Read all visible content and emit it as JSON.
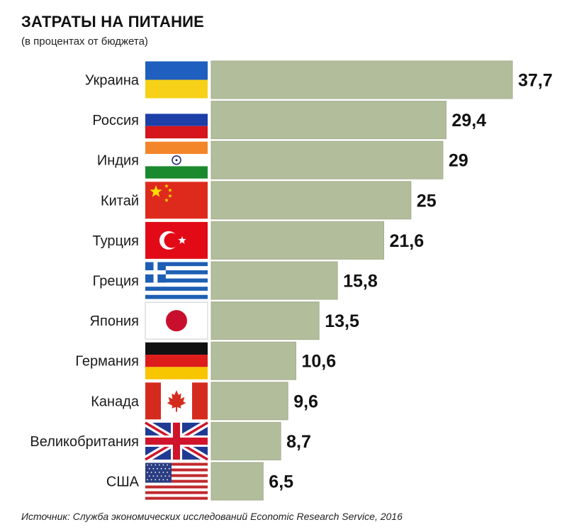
{
  "title": "ЗАТРАТЫ НА ПИТАНИЕ",
  "subtitle": "(в процентах от бюджета)",
  "source": "Источник: Служба экономических исследований Economic Research Service, 2016",
  "colors": {
    "bar": "#b2bd9c",
    "bar_edge": "#a3ae8c"
  },
  "chart_data": {
    "type": "bar",
    "orientation": "horizontal",
    "title": "ЗАТРАТЫ НА ПИТАНИЕ",
    "subtitle": "(в процентах от бюджета)",
    "xlabel": "",
    "ylabel": "",
    "xlim": [
      0,
      37.7
    ],
    "grid": false,
    "categories": [
      "Украина",
      "Россия",
      "Индия",
      "Китай",
      "Турция",
      "Греция",
      "Япония",
      "Германия",
      "Канада",
      "Великобритания",
      "США"
    ],
    "flags": [
      "flag-ukraine-icon",
      "flag-russia-icon",
      "flag-india-icon",
      "flag-china-icon",
      "flag-turkey-icon",
      "flag-greece-icon",
      "flag-japan-icon",
      "flag-germany-icon",
      "flag-canada-icon",
      "flag-uk-icon",
      "flag-usa-icon"
    ],
    "values": [
      37.7,
      29.4,
      29,
      25,
      21.6,
      15.8,
      13.5,
      10.6,
      9.6,
      8.7,
      6.5
    ],
    "value_labels": [
      "37,7",
      "29,4",
      "29",
      "25",
      "21,6",
      "15,8",
      "13,5",
      "10,6",
      "9,6",
      "8,7",
      "6,5"
    ]
  }
}
